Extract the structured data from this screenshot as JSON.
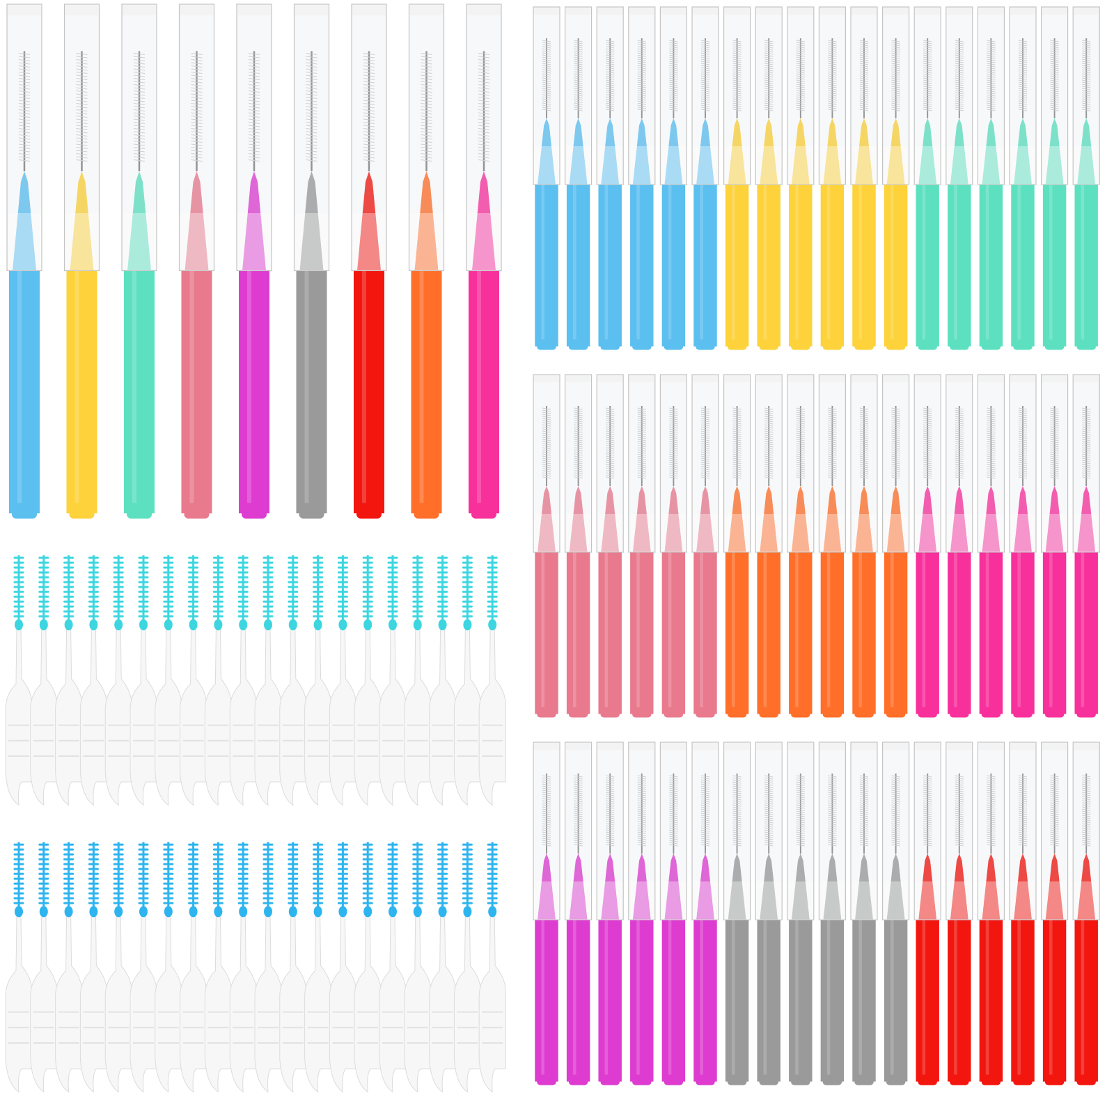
{
  "large_brushes": {
    "colors": [
      "#5bbff0",
      "#fdd23a",
      "#5de0c0",
      "#e97a8e",
      "#de3cd0",
      "#9a9a9a",
      "#f2160f",
      "#ff6f2a",
      "#f8309c"
    ]
  },
  "brush_grid": {
    "rows": [
      {
        "colors": [
          "#5bbff0",
          "#fdd23a",
          "#5de0c0"
        ]
      },
      {
        "colors": [
          "#e97a8e",
          "#ff6f2a",
          "#f8309c"
        ]
      },
      {
        "colors": [
          "#de3cd0",
          "#9a9a9a",
          "#f2160f"
        ]
      }
    ]
  },
  "pick_brushes": {
    "rows": [
      {
        "color": "#3dd6e0"
      },
      {
        "color": "#2eb4ef"
      }
    ]
  }
}
